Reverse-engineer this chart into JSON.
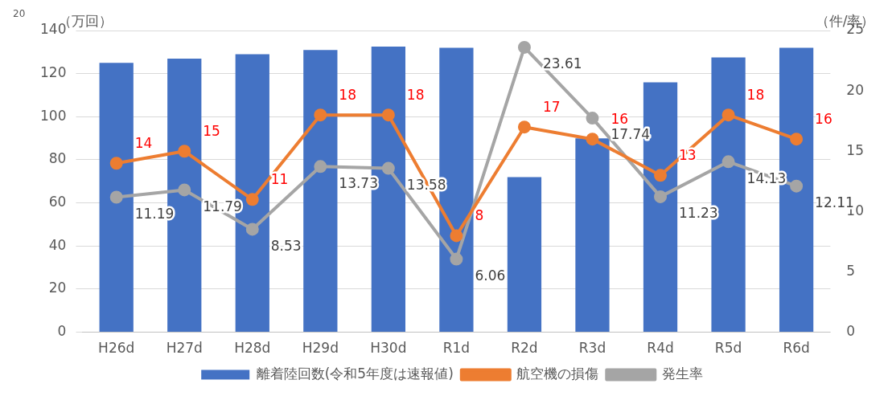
{
  "chart_data": {
    "type": "bar",
    "categories": [
      "H26d",
      "H27d",
      "H28d",
      "H29d",
      "H30d",
      "R1d",
      "R2d",
      "R3d",
      "R4d",
      "R5d",
      "R6d"
    ],
    "ylabel": "（万回）",
    "y2label": "（件/率）",
    "ylim": [
      0,
      140
    ],
    "yticks": [
      0,
      20,
      40,
      60,
      80,
      100,
      120,
      140
    ],
    "y2lim": [
      0,
      25
    ],
    "y2ticks": [
      0,
      5,
      10,
      15,
      20,
      25
    ],
    "series": [
      {
        "name": "離着陸回数(令和5年度は速報値)",
        "color": "#4472c4",
        "values": [
          125,
          127,
          129,
          131,
          132.5,
          132,
          72,
          90,
          116,
          127.5,
          132
        ]
      },
      {
        "name": "航空機の損傷",
        "type": "line",
        "axis": "y2",
        "color": "#ed7d31",
        "values": [
          14,
          15,
          11,
          18,
          18,
          8,
          17,
          16,
          13,
          18,
          16
        ],
        "value_labels": [
          "14",
          "15",
          "11",
          "18",
          "18",
          "8",
          "17",
          "16",
          "13",
          "18",
          "16"
        ]
      },
      {
        "name": "発生率",
        "type": "line",
        "axis": "y2",
        "color": "#a5a5a5",
        "values": [
          11.19,
          11.79,
          8.53,
          13.73,
          13.58,
          6.06,
          23.61,
          17.74,
          11.23,
          14.13,
          12.11
        ],
        "value_labels": [
          "11.19",
          "11.79",
          "8.53",
          "13.73",
          "13.58",
          "6.06",
          "23.61",
          "17.74",
          "11.23",
          "14.13",
          "12.11"
        ]
      }
    ],
    "marker": "circle",
    "grid": "y",
    "legend": "bottom",
    "annotations": [
      "20"
    ]
  }
}
